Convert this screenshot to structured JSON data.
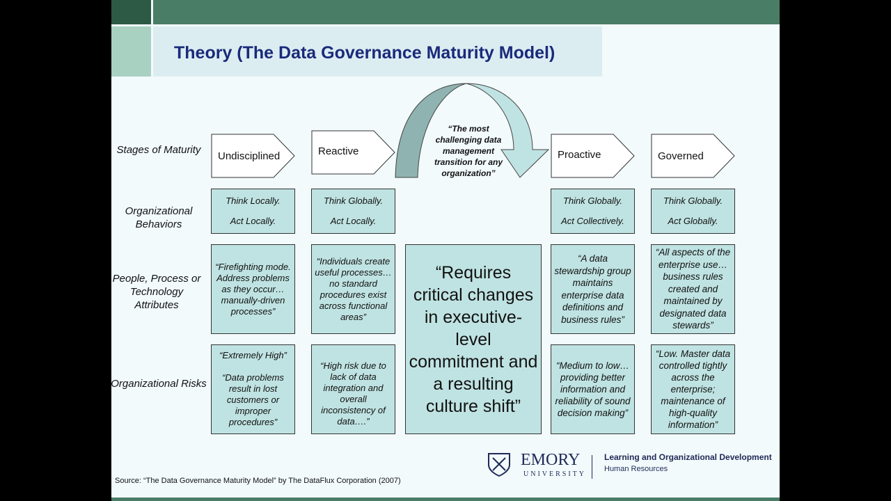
{
  "title": "Theory (The Data Governance Maturity Model)",
  "row_labels": [
    "Stages of Maturity",
    "Organizational Behaviors",
    "People, Process or Technology Attributes",
    "Organizational Risks"
  ],
  "stages": [
    "Undisciplined",
    "Reactive",
    "Proactive",
    "Governed"
  ],
  "transition_note": "“The most challenging data management transition for any organization”",
  "behaviors": [
    {
      "a": "Think Locally.",
      "b": "Act Locally."
    },
    {
      "a": "Think Globally.",
      "b": "Act Locally."
    },
    {
      "a": "Think Globally.",
      "b": "Act Collectively."
    },
    {
      "a": "Think Globally.",
      "b": "Act Globally."
    }
  ],
  "attributes": [
    "“Firefighting mode.  Address problems as they occur…manually-driven processes”",
    "“Individuals create useful processes…no standard procedures exist across functional areas”",
    "“A data stewardship group maintains enterprise data definitions and business rules”",
    "“All aspects of the enterprise use…business rules created and maintained by designated data stewards”"
  ],
  "risks": [
    {
      "a": "“Extremely High”",
      "b": "“Data problems result in lost customers or improper procedures”"
    },
    {
      "a": "",
      "b": "“High risk due to lack of data integration and overall inconsistency of data….”"
    },
    {
      "a": "",
      "b": "“Medium to low…providing better information and reliability of sound decision making”"
    },
    {
      "a": "",
      "b": "“Low. Master data controlled tightly across the enterprise; maintenance of high-quality information”"
    }
  ],
  "center_quote": "“Requires critical changes in executive-level commitment and a resulting culture shift”",
  "source": "Source: “The Data Governance Maturity Model” by The DataFlux Corporation (2007)",
  "logo": {
    "name": "EMORY",
    "sub": "UNIVERSITY",
    "dept": "Learning and Organizational Development",
    "unit": "Human Resources"
  },
  "colors": {
    "box": "#bfe3e2",
    "header_green": "#4a7d66",
    "title": "#1a2a7a"
  }
}
